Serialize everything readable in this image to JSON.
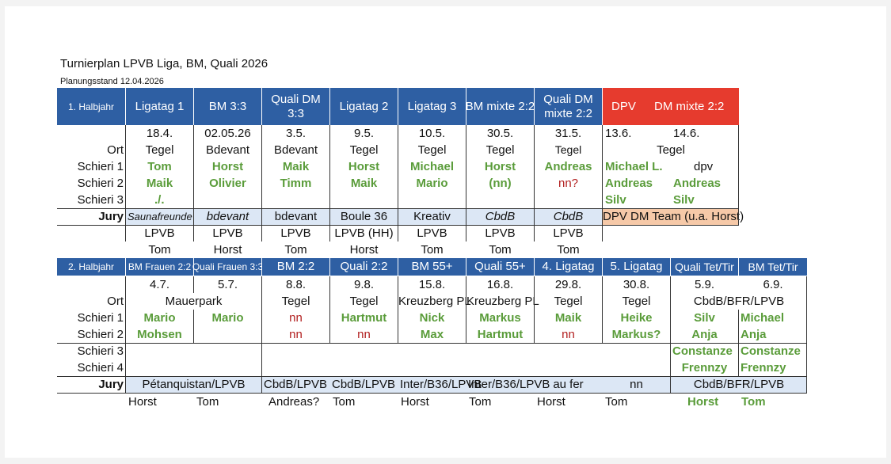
{
  "title": "Turnierplan LPVB Liga, BM, Quali 2026",
  "subtitle": "Planungsstand 12.04.2026",
  "h1": {
    "label": "1. Halbjahr",
    "headers": [
      "Ligatag 1",
      "BM 3:3",
      "Quali DM 3:3",
      "Ligatag 2",
      "Ligatag 3",
      "BM mixte 2:2",
      "Quali DM mixte 2:2",
      "DPV",
      "DM mixte 2:2"
    ],
    "dates": [
      "18.4.",
      "02.05.26",
      "3.5.",
      "9.5.",
      "10.5.",
      "30.5.",
      "31.5.",
      "13.6.",
      "14.6."
    ],
    "ort_label": "Ort",
    "orte": [
      "Tegel",
      "Bdevant",
      "Bdevant",
      "Tegel",
      "Tegel",
      "Tegel",
      "Tegel",
      "Tegel"
    ],
    "schieri1_label": "Schieri 1",
    "schieri1": [
      "Tom",
      "Horst",
      "Maik",
      "Horst",
      "Michael",
      "Horst",
      "Andreas",
      "Michael L.",
      "dpv"
    ],
    "schieri2_label": "Schieri 2",
    "schieri2": [
      "Maik",
      "Olivier",
      "Timm",
      "Maik",
      "Mario",
      "(nn)",
      "nn?",
      "Andreas",
      "Andreas"
    ],
    "schieri3_label": "Schieri 3",
    "schieri3": [
      "./.",
      "Silv",
      "Silv"
    ],
    "jury_label": "Jury",
    "jury": [
      "Saunafreunde",
      "bdevant",
      "bdevant",
      "Boule 36",
      "Kreativ",
      "CbdB",
      "CbdB",
      "DPV DM Team (u.a. Horst)"
    ],
    "extra1": [
      "LPVB",
      "LPVB",
      "LPVB",
      "LPVB (HH)",
      "LPVB",
      "LPVB",
      "LPVB"
    ],
    "extra2": [
      "Tom",
      "Horst",
      "Tom",
      "Horst",
      "Tom",
      "Tom",
      "Tom"
    ]
  },
  "h2": {
    "label": "2. Halbjahr",
    "headers": [
      "BM Frauen 2:2",
      "Quali Frauen 3:3",
      "BM 2:2",
      "Quali 2:2",
      "BM 55+",
      "Quali 55+",
      "4. Ligatag",
      "5. Ligatag",
      "Quali  Tet/Tir",
      "BM Tet/Tir"
    ],
    "dates": [
      "4.7.",
      "5.7.",
      "8.8.",
      "9.8.",
      "15.8.",
      "16.8.",
      "29.8.",
      "30.8.",
      "5.9.",
      "6.9."
    ],
    "ort_label": "Ort",
    "orte": [
      "Mauerpark",
      "Tegel",
      "Tegel",
      "Kreuzberg PL",
      "Kreuzberg PL",
      "Tegel",
      "Tegel",
      "CbdB/BFR/LPVB"
    ],
    "schieri1_label": "Schieri 1",
    "schieri1": [
      "Mario",
      "Mario",
      "nn",
      "Hartmut",
      "Nick",
      "Markus",
      "Maik",
      "Heike",
      "Silv",
      "Michael"
    ],
    "schieri2_label": "Schieri 2",
    "schieri2": [
      "Mohsen",
      "nn",
      "nn",
      "Max",
      "Hartmut",
      "nn",
      "Markus?",
      "Anja",
      "Anja"
    ],
    "schieri3_label": "Schieri 3",
    "schieri3": [
      "Constanze",
      "Constanze"
    ],
    "schieri4_label": "Schieri 4",
    "schieri4": [
      "Frennzy",
      "Frennzy"
    ],
    "jury_label": "Jury",
    "jury": [
      "Pétanquistan/LPVB",
      "CbdB/LPVB",
      "CbdB/LPVB",
      "Inter/B36/LPVB",
      "Inter/B36/LPVB",
      "au fer",
      "nn",
      "CbdB/BFR/LPVB"
    ],
    "extra": [
      "Horst",
      "Tom",
      "Andreas?",
      "Tom",
      "Horst",
      "Tom",
      "Horst",
      "Tom",
      "Horst",
      "Tom"
    ]
  },
  "colors": {
    "header_blue": "#2e5fa3",
    "red": "#e63b2e",
    "green": "#5a9c3a",
    "darkred": "#b21f1f",
    "jury_blue": "#dce7f5",
    "peach": "#f6c9a8"
  }
}
